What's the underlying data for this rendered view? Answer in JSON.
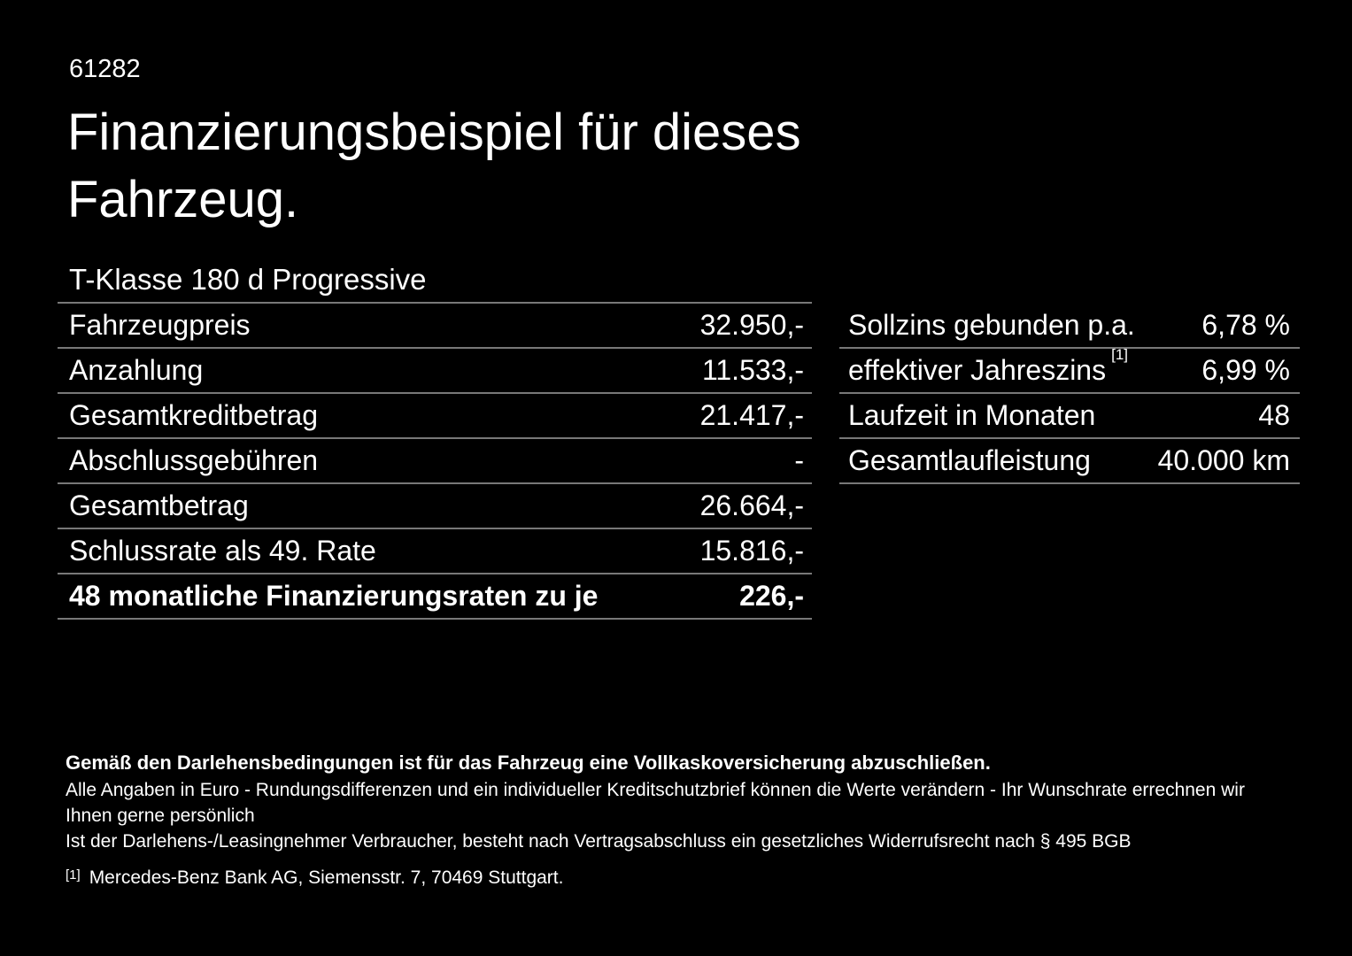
{
  "page": {
    "id": "61282",
    "title_line1": "Finanzierungsbeispiel für dieses",
    "title_line2": "Fahrzeug."
  },
  "vehicle": {
    "name": "T-Klasse 180 d Progressive"
  },
  "finance_table": {
    "rows": [
      {
        "label": "Fahrzeugpreis",
        "value": "32.950,-"
      },
      {
        "label": "Anzahlung",
        "value": "11.533,-"
      },
      {
        "label": "Gesamtkreditbetrag",
        "value": "21.417,-"
      },
      {
        "label": "Abschlussgebühren",
        "value": "-"
      },
      {
        "label": "Gesamtbetrag",
        "value": "26.664,-"
      },
      {
        "label": "Schlussrate als 49. Rate",
        "value": "15.816,-"
      },
      {
        "label": "48 monatliche Finanzierungsraten zu je",
        "value": "226,-"
      }
    ]
  },
  "conditions_table": {
    "rows": [
      {
        "label": "Sollzins gebunden p.a.",
        "value": "6,78 %"
      },
      {
        "label": "effektiver Jahreszins",
        "footnote_marker": "[1]",
        "value": "6,99 %"
      },
      {
        "label": "Laufzeit in Monaten",
        "value": "48"
      },
      {
        "label": "Gesamtlaufleistung",
        "value": "40.000 km"
      }
    ]
  },
  "footnotes": {
    "insurance_notice": "Gemäß den Darlehensbedingungen ist für das Fahrzeug eine Vollkaskoversicherung abzuschließen.",
    "rounding_notice": "Alle Angaben in Euro - Rundungsdifferenzen und ein individueller Kreditschutzbrief können die Werte verändern - Ihr Wunschrate errechnen wir Ihnen gerne persönlich",
    "withdrawal_notice": "Ist der Darlehens-/Leasingnehmer Verbraucher, besteht nach Vertragsabschluss ein gesetzliches Widerrufsrecht nach § 495 BGB",
    "bank_marker": "[1]",
    "bank_reference": "Mercedes-Benz Bank AG, Siemensstr. 7, 70469 Stuttgart."
  },
  "colors": {
    "background": "#000000",
    "text": "#ffffff",
    "divider": "#787878"
  }
}
